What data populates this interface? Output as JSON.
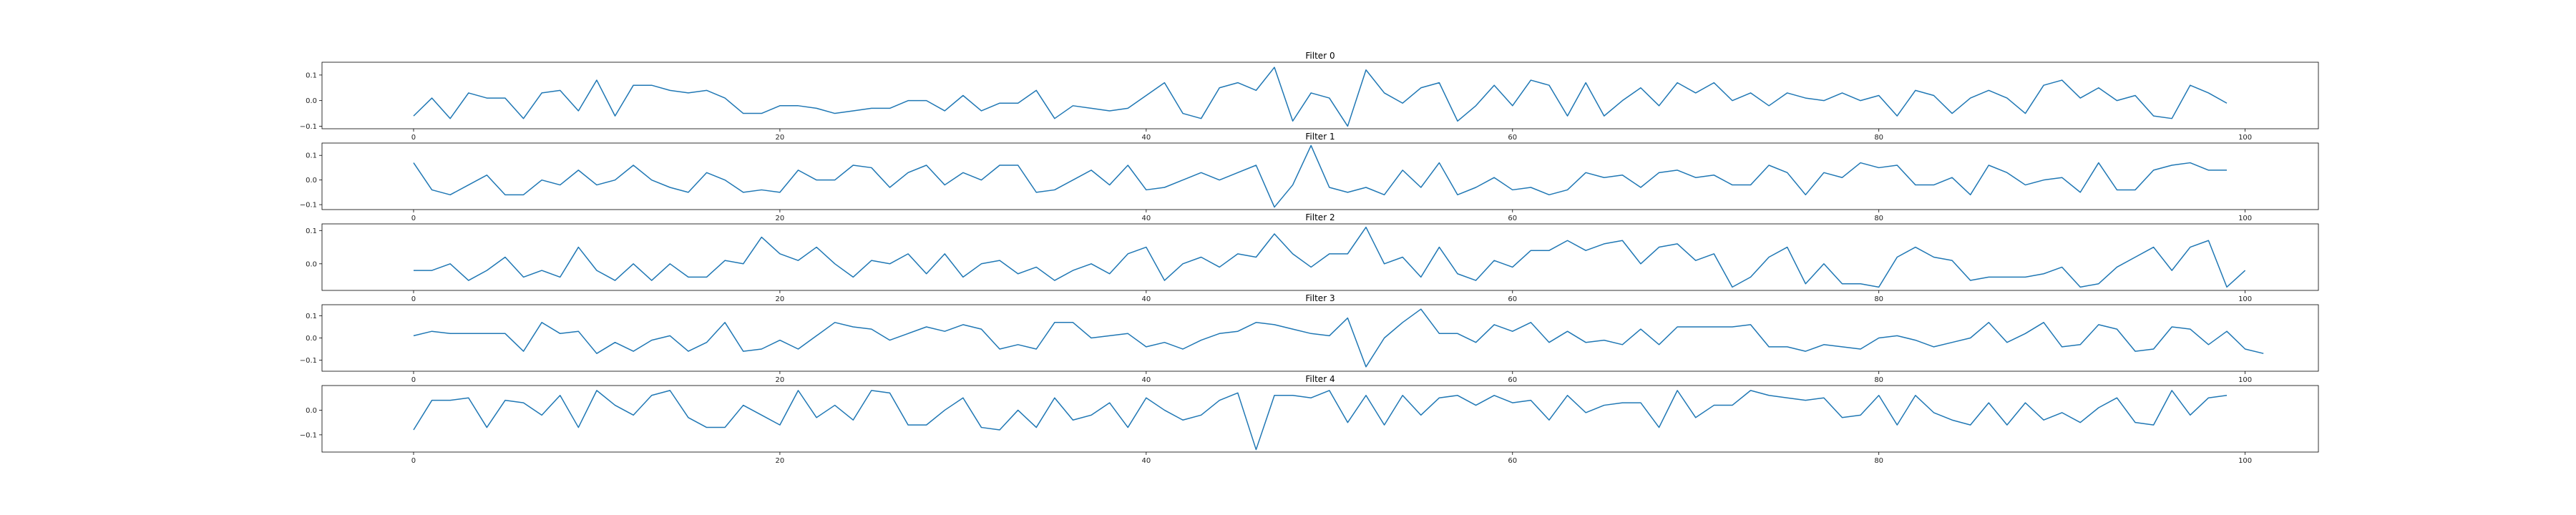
{
  "chart_data": [
    {
      "type": "line",
      "title": "Filter 0",
      "xlabel": "",
      "ylabel": "",
      "xlim": [
        -5,
        104
      ],
      "ylim": [
        -0.11,
        0.15
      ],
      "xticks": [
        0,
        20,
        40,
        60,
        80,
        100
      ],
      "xtick_labels": [
        "0",
        "20",
        "40",
        "60",
        "80",
        "100"
      ],
      "yticks": [
        0.1,
        0.0,
        -0.1
      ],
      "ytick_labels": [
        "0.1",
        "0.0",
        "−0.1"
      ],
      "color": "#1f77b4",
      "x_start": 0,
      "values": [
        -0.06,
        0.01,
        -0.07,
        0.03,
        0.01,
        0.01,
        -0.07,
        0.03,
        0.04,
        -0.04,
        0.08,
        -0.06,
        0.06,
        0.06,
        0.04,
        0.03,
        0.04,
        0.01,
        -0.05,
        -0.05,
        -0.02,
        -0.02,
        -0.03,
        -0.05,
        -0.04,
        -0.03,
        -0.03,
        0.0,
        0.0,
        -0.04,
        0.02,
        -0.04,
        -0.01,
        -0.01,
        0.04,
        -0.07,
        -0.02,
        -0.03,
        -0.04,
        -0.03,
        0.02,
        0.07,
        -0.05,
        -0.07,
        0.05,
        0.07,
        0.04,
        0.13,
        -0.08,
        0.03,
        0.01,
        -0.1,
        0.12,
        0.03,
        -0.01,
        0.05,
        0.07,
        -0.08,
        -0.02,
        0.06,
        -0.02,
        0.08,
        0.06,
        -0.06,
        0.07,
        -0.06,
        0.0,
        0.05,
        -0.02,
        0.07,
        0.03,
        0.07,
        0.0,
        0.03,
        -0.02,
        0.03,
        0.01,
        0.0,
        0.03,
        0.0,
        0.02,
        -0.06,
        0.04,
        0.02,
        -0.05,
        0.01,
        0.04,
        0.01,
        -0.05,
        0.06,
        0.08,
        0.01,
        0.05,
        0.0,
        0.02,
        -0.06,
        -0.07,
        0.06,
        0.03,
        -0.01
      ]
    },
    {
      "type": "line",
      "title": "Filter 1",
      "xlabel": "",
      "ylabel": "",
      "xlim": [
        -5,
        104
      ],
      "ylim": [
        -0.12,
        0.15
      ],
      "xticks": [
        0,
        20,
        40,
        60,
        80,
        100
      ],
      "xtick_labels": [
        "0",
        "20",
        "40",
        "60",
        "80",
        "100"
      ],
      "yticks": [
        0.1,
        0.0,
        -0.1
      ],
      "ytick_labels": [
        "0.1",
        "0.0",
        "−0.1"
      ],
      "color": "#1f77b4",
      "x_start": 0,
      "values": [
        0.07,
        -0.04,
        -0.06,
        -0.02,
        0.02,
        -0.06,
        -0.06,
        0.0,
        -0.02,
        0.04,
        -0.02,
        0.0,
        0.06,
        0.0,
        -0.03,
        -0.05,
        0.03,
        0.0,
        -0.05,
        -0.04,
        -0.05,
        0.04,
        0.0,
        0.0,
        0.06,
        0.05,
        -0.03,
        0.03,
        0.06,
        -0.02,
        0.03,
        0.0,
        0.06,
        0.06,
        -0.05,
        -0.04,
        0.0,
        0.04,
        -0.02,
        0.06,
        -0.04,
        -0.03,
        0.0,
        0.03,
        0.0,
        0.03,
        0.06,
        -0.11,
        -0.02,
        0.14,
        -0.03,
        -0.05,
        -0.03,
        -0.06,
        0.04,
        -0.03,
        0.07,
        -0.06,
        -0.03,
        0.01,
        -0.04,
        -0.03,
        -0.06,
        -0.04,
        0.03,
        0.01,
        0.02,
        -0.03,
        0.03,
        0.04,
        0.01,
        0.02,
        -0.02,
        -0.02,
        0.06,
        0.03,
        -0.06,
        0.03,
        0.01,
        0.07,
        0.05,
        0.06,
        -0.02,
        -0.02,
        0.01,
        -0.06,
        0.06,
        0.03,
        -0.02,
        0.0,
        0.01,
        -0.05,
        0.07,
        -0.04,
        -0.04,
        0.04,
        0.06,
        0.07,
        0.04,
        0.04
      ]
    },
    {
      "type": "line",
      "title": "Filter 2",
      "xlabel": "",
      "ylabel": "",
      "xlim": [
        -5,
        104
      ],
      "ylim": [
        -0.08,
        0.12
      ],
      "xticks": [
        0,
        20,
        40,
        60,
        80,
        100
      ],
      "xtick_labels": [
        "0",
        "20",
        "40",
        "60",
        "80",
        "100"
      ],
      "yticks": [
        0.1,
        0.0
      ],
      "ytick_labels": [
        "0.1",
        "0.0"
      ],
      "color": "#1f77b4",
      "x_start": 0,
      "values": [
        -0.02,
        -0.02,
        0.0,
        -0.05,
        -0.02,
        0.02,
        -0.04,
        -0.02,
        -0.04,
        0.05,
        -0.02,
        -0.05,
        0.0,
        -0.05,
        0.0,
        -0.04,
        -0.04,
        0.01,
        0.0,
        0.08,
        0.03,
        0.01,
        0.05,
        0.0,
        -0.04,
        0.01,
        0.0,
        0.03,
        -0.03,
        0.03,
        -0.04,
        0.0,
        0.01,
        -0.03,
        -0.01,
        -0.05,
        -0.02,
        0.0,
        -0.03,
        0.03,
        0.05,
        -0.05,
        0.0,
        0.02,
        -0.01,
        0.03,
        0.02,
        0.09,
        0.03,
        -0.01,
        0.03,
        0.03,
        0.11,
        0.0,
        0.02,
        -0.04,
        0.05,
        -0.03,
        -0.05,
        0.01,
        -0.01,
        0.04,
        0.04,
        0.07,
        0.04,
        0.06,
        0.07,
        0.0,
        0.05,
        0.06,
        0.01,
        0.03,
        -0.07,
        -0.04,
        0.02,
        0.05,
        -0.06,
        0.0,
        -0.06,
        -0.06,
        -0.07,
        0.02,
        0.05,
        0.02,
        0.01,
        -0.05,
        -0.04,
        -0.04,
        -0.04,
        -0.03,
        -0.01,
        -0.07,
        -0.06,
        -0.01,
        0.02,
        0.05,
        -0.02,
        0.05,
        0.07,
        -0.07,
        -0.02
      ]
    },
    {
      "type": "line",
      "title": "Filter 3",
      "xlabel": "",
      "ylabel": "",
      "xlim": [
        -5,
        104
      ],
      "ylim": [
        -0.15,
        0.15
      ],
      "xticks": [
        0,
        20,
        40,
        60,
        80,
        100
      ],
      "xtick_labels": [
        "0",
        "20",
        "40",
        "60",
        "80",
        "100"
      ],
      "yticks": [
        0.1,
        0.0,
        -0.1
      ],
      "ytick_labels": [
        "0.1",
        "0.0",
        "−0.1"
      ],
      "color": "#1f77b4",
      "x_start": 0,
      "values": [
        0.01,
        0.03,
        0.02,
        0.02,
        0.02,
        0.02,
        -0.06,
        0.07,
        0.02,
        0.03,
        -0.07,
        -0.02,
        -0.06,
        -0.01,
        0.01,
        -0.06,
        -0.02,
        0.07,
        -0.06,
        -0.05,
        -0.01,
        -0.05,
        0.01,
        0.07,
        0.05,
        0.04,
        -0.01,
        0.02,
        0.05,
        0.03,
        0.06,
        0.04,
        -0.05,
        -0.03,
        -0.05,
        0.07,
        0.07,
        0.0,
        0.01,
        0.02,
        -0.04,
        -0.02,
        -0.05,
        -0.01,
        0.02,
        0.03,
        0.07,
        0.06,
        0.04,
        0.02,
        0.01,
        0.09,
        -0.13,
        0.0,
        0.07,
        0.13,
        0.02,
        0.02,
        -0.02,
        0.06,
        0.03,
        0.07,
        -0.02,
        0.03,
        -0.02,
        -0.01,
        -0.03,
        0.04,
        -0.03,
        0.05,
        0.05,
        0.05,
        0.05,
        0.06,
        -0.04,
        -0.04,
        -0.06,
        -0.03,
        -0.04,
        -0.05,
        0.0,
        0.01,
        -0.01,
        -0.04,
        -0.02,
        0.0,
        0.07,
        -0.02,
        0.02,
        0.07,
        -0.04,
        -0.03,
        0.06,
        0.04,
        -0.06,
        -0.05,
        0.05,
        0.04,
        -0.03,
        0.03,
        -0.05,
        -0.07
      ]
    },
    {
      "type": "line",
      "title": "Filter 4",
      "xlabel": "",
      "ylabel": "",
      "xlim": [
        -5,
        104
      ],
      "ylim": [
        -0.17,
        0.1
      ],
      "xticks": [
        0,
        20,
        40,
        60,
        80,
        100
      ],
      "xtick_labels": [
        "0",
        "20",
        "40",
        "60",
        "80",
        "100"
      ],
      "yticks": [
        0.0,
        -0.1
      ],
      "ytick_labels": [
        "0.0",
        "−0.1"
      ],
      "color": "#1f77b4",
      "x_start": 0,
      "values": [
        -0.08,
        0.04,
        0.04,
        0.05,
        -0.07,
        0.04,
        0.03,
        -0.02,
        0.06,
        -0.07,
        0.08,
        0.02,
        -0.02,
        0.06,
        0.08,
        -0.03,
        -0.07,
        -0.07,
        0.02,
        -0.02,
        -0.06,
        0.08,
        -0.03,
        0.02,
        -0.04,
        0.08,
        0.07,
        -0.06,
        -0.06,
        0.0,
        0.05,
        -0.07,
        -0.08,
        0.0,
        -0.07,
        0.05,
        -0.04,
        -0.02,
        0.03,
        -0.07,
        0.05,
        0.0,
        -0.04,
        -0.02,
        0.04,
        0.07,
        -0.16,
        0.06,
        0.06,
        0.05,
        0.08,
        -0.05,
        0.06,
        -0.06,
        0.06,
        -0.02,
        0.05,
        0.06,
        0.02,
        0.06,
        0.03,
        0.04,
        -0.04,
        0.06,
        -0.01,
        0.02,
        0.03,
        0.03,
        -0.07,
        0.08,
        -0.03,
        0.02,
        0.02,
        0.08,
        0.06,
        0.05,
        0.04,
        0.05,
        -0.03,
        -0.02,
        0.06,
        -0.06,
        0.06,
        -0.01,
        -0.04,
        -0.06,
        0.03,
        -0.06,
        0.03,
        -0.04,
        -0.01,
        -0.05,
        0.01,
        0.05,
        -0.05,
        -0.06,
        0.08,
        -0.02,
        0.05,
        0.06
      ]
    }
  ]
}
